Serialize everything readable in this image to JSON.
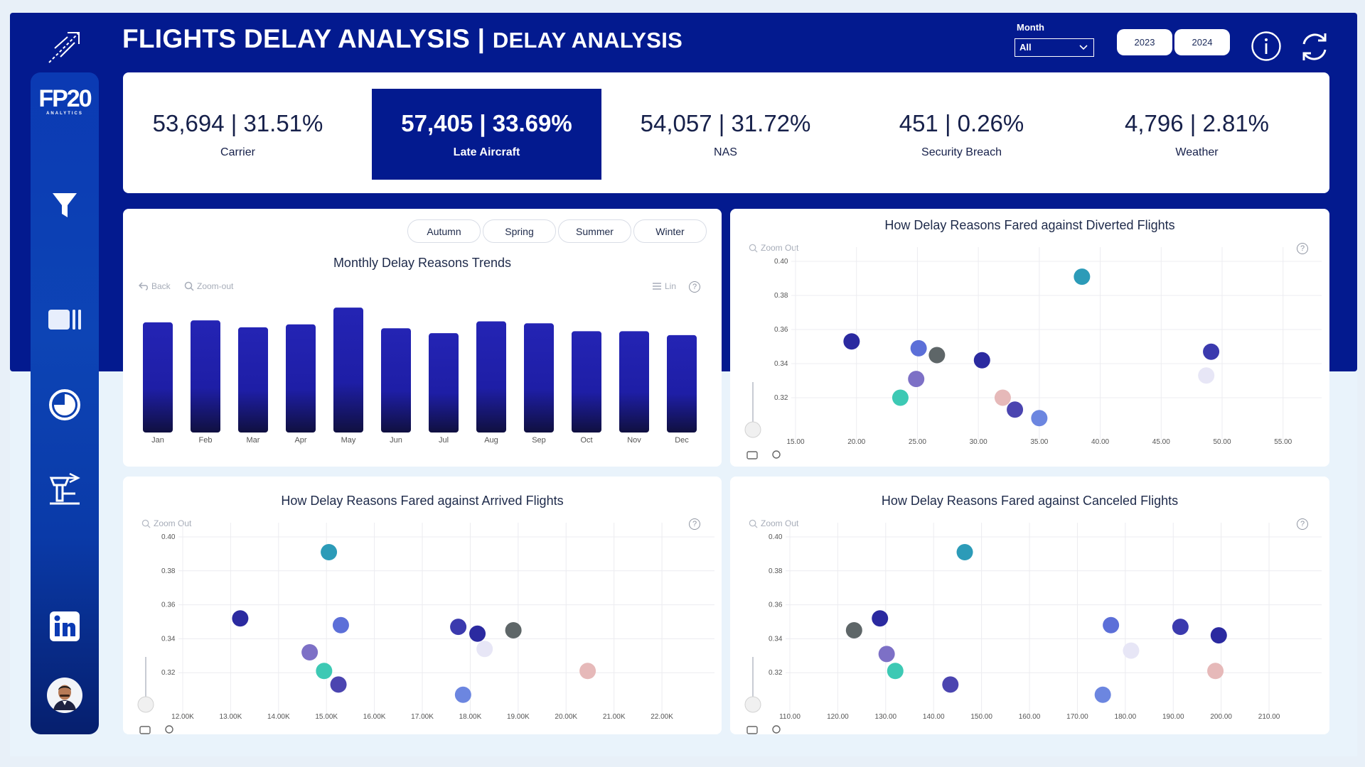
{
  "header": {
    "title": "FLIGHTS DELAY ANALYSIS |",
    "subtitle": "DELAY ANALYSIS",
    "month_label": "Month",
    "month_value": "All",
    "years": [
      "2023",
      "2024"
    ]
  },
  "sidebar": {
    "brand": "FP20",
    "brand_sub": "ANALYTICS",
    "items": [
      "filter-icon",
      "panel-icon",
      "clock-icon",
      "airport-tower-icon",
      "linkedin-icon",
      "avatar"
    ]
  },
  "kpis": [
    {
      "value": "53,694 | 31.51%",
      "label": "Carrier",
      "active": false
    },
    {
      "value": "57,405 | 33.69%",
      "label": "Late Aircraft",
      "active": true
    },
    {
      "value": "54,057 | 31.72%",
      "label": "NAS",
      "active": false
    },
    {
      "value": "451 | 0.26%",
      "label": "Security Breach",
      "active": false
    },
    {
      "value": "4,796 | 2.81%",
      "label": "Weather",
      "active": false
    }
  ],
  "bar_panel": {
    "seasons": [
      "Autumn",
      "Spring",
      "Summer",
      "Winter"
    ],
    "toolbar": {
      "back": "Back",
      "zoom_out": "Zoom-out",
      "lin": "Lin"
    }
  },
  "scatter_toolbar": {
    "zoom_out": "Zoom Out"
  },
  "colors": {
    "navy": "#031a8f",
    "teal": "#2c9bb8",
    "mint": "#3dc9b4",
    "dark_indigo": "#2b2aa0",
    "periwinkle": "#5c6fd8",
    "lavender": "#7d70c6",
    "gray": "#5e6668",
    "pink": "#e6b9b9",
    "pale": "#e7e6f6",
    "slate_indigo": "#4b45b0",
    "blue_soft": "#6c86e0"
  },
  "chart_data": [
    {
      "type": "bar",
      "title": "Monthly Delay Reasons Trends",
      "categories": [
        "Jan",
        "Feb",
        "Mar",
        "Apr",
        "May",
        "Jun",
        "Jul",
        "Aug",
        "Sep",
        "Oct",
        "Nov",
        "Dec"
      ],
      "values": [
        112,
        114,
        107,
        110,
        127,
        106,
        101,
        113,
        111,
        103,
        103,
        99
      ],
      "ylim": [
        0,
        130
      ],
      "grid": false
    },
    {
      "type": "scatter",
      "title": "How Delay Reasons Fared against Diverted Flights",
      "x_ticks": [
        "15.00",
        "20.00",
        "25.00",
        "30.00",
        "35.00",
        "40.00",
        "45.00",
        "50.00",
        "55.00"
      ],
      "y_ticks": [
        "0.40",
        "0.38",
        "0.36",
        "0.34",
        "0.32"
      ],
      "xlim": [
        15,
        57
      ],
      "ylim": [
        0.3,
        0.4
      ],
      "points": [
        {
          "x": 38.5,
          "y": 0.391,
          "color": "#2c9bb8"
        },
        {
          "x": 19.6,
          "y": 0.353,
          "color": "#2b2aa0"
        },
        {
          "x": 25.1,
          "y": 0.349,
          "color": "#5c6fd8"
        },
        {
          "x": 26.6,
          "y": 0.345,
          "color": "#5e6668"
        },
        {
          "x": 30.3,
          "y": 0.342,
          "color": "#2b2aa0"
        },
        {
          "x": 49.1,
          "y": 0.347,
          "color": "#3b3aae"
        },
        {
          "x": 24.9,
          "y": 0.331,
          "color": "#7d70c6"
        },
        {
          "x": 48.7,
          "y": 0.333,
          "color": "#e7e6f6"
        },
        {
          "x": 23.6,
          "y": 0.32,
          "color": "#3dc9b4"
        },
        {
          "x": 32.0,
          "y": 0.32,
          "color": "#e6b9b9"
        },
        {
          "x": 33.0,
          "y": 0.313,
          "color": "#4b45b0"
        },
        {
          "x": 35.0,
          "y": 0.308,
          "color": "#6c86e0"
        }
      ]
    },
    {
      "type": "scatter",
      "title": "How Delay Reasons Fared against Arrived Flights",
      "x_ticks": [
        "12.00K",
        "13.00K",
        "14.00K",
        "15.00K",
        "16.00K",
        "17.00K",
        "18.00K",
        "19.00K",
        "20.00K",
        "21.00K",
        "22.00K"
      ],
      "y_ticks": [
        "0.40",
        "0.38",
        "0.36",
        "0.34",
        "0.32"
      ],
      "xlim": [
        12000,
        22800
      ],
      "ylim": [
        0.3,
        0.4
      ],
      "points": [
        {
          "x": 15050,
          "y": 0.391,
          "color": "#2c9bb8"
        },
        {
          "x": 13200,
          "y": 0.352,
          "color": "#2b2aa0"
        },
        {
          "x": 15300,
          "y": 0.348,
          "color": "#5c6fd8"
        },
        {
          "x": 17750,
          "y": 0.347,
          "color": "#3b3aae"
        },
        {
          "x": 18150,
          "y": 0.343,
          "color": "#2b2aa0"
        },
        {
          "x": 18900,
          "y": 0.345,
          "color": "#5e6668"
        },
        {
          "x": 14650,
          "y": 0.332,
          "color": "#7d70c6"
        },
        {
          "x": 18300,
          "y": 0.334,
          "color": "#e7e6f6"
        },
        {
          "x": 14950,
          "y": 0.321,
          "color": "#3dc9b4"
        },
        {
          "x": 15250,
          "y": 0.313,
          "color": "#4b45b0"
        },
        {
          "x": 20450,
          "y": 0.321,
          "color": "#e6b9b9"
        },
        {
          "x": 17850,
          "y": 0.307,
          "color": "#6c86e0"
        }
      ]
    },
    {
      "type": "scatter",
      "title": "How Delay Reasons Fared against Canceled Flights",
      "x_ticks": [
        "110.00",
        "120.00",
        "130.00",
        "140.00",
        "150.00",
        "160.00",
        "170.00",
        "180.00",
        "190.00",
        "200.00",
        "210.00"
      ],
      "y_ticks": [
        "0.40",
        "0.38",
        "0.36",
        "0.34",
        "0.32"
      ],
      "xlim": [
        110,
        218
      ],
      "ylim": [
        0.3,
        0.4
      ],
      "points": [
        {
          "x": 146.5,
          "y": 0.391,
          "color": "#2c9bb8"
        },
        {
          "x": 128.8,
          "y": 0.352,
          "color": "#2b2aa0"
        },
        {
          "x": 123.4,
          "y": 0.345,
          "color": "#5e6668"
        },
        {
          "x": 177.0,
          "y": 0.348,
          "color": "#5c6fd8"
        },
        {
          "x": 191.5,
          "y": 0.347,
          "color": "#3b3aae"
        },
        {
          "x": 199.5,
          "y": 0.342,
          "color": "#2b2aa0"
        },
        {
          "x": 130.2,
          "y": 0.331,
          "color": "#7d70c6"
        },
        {
          "x": 181.2,
          "y": 0.333,
          "color": "#e7e6f6"
        },
        {
          "x": 132.0,
          "y": 0.321,
          "color": "#3dc9b4"
        },
        {
          "x": 143.5,
          "y": 0.313,
          "color": "#4b45b0"
        },
        {
          "x": 198.8,
          "y": 0.321,
          "color": "#e6b9b9"
        },
        {
          "x": 175.3,
          "y": 0.307,
          "color": "#6c86e0"
        }
      ]
    }
  ]
}
